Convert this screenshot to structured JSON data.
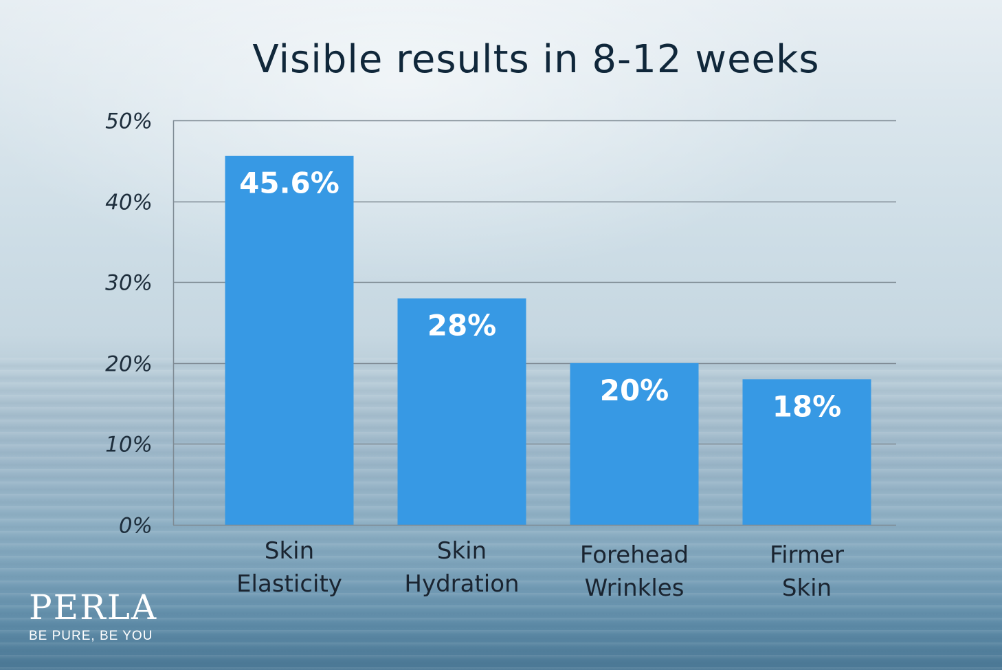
{
  "chart_data": {
    "type": "bar",
    "title": "Visible results in 8-12 weeks",
    "categories": [
      [
        "Skin",
        "Elasticity"
      ],
      [
        "Skin",
        "Hydration"
      ],
      [
        "Forehead",
        "Wrinkles"
      ],
      [
        "Firmer",
        "Skin"
      ]
    ],
    "values": [
      45.6,
      28,
      20,
      18
    ],
    "data_labels": [
      "45.6%",
      "28%",
      "20%",
      "18%"
    ],
    "y_ticks": [
      0,
      10,
      20,
      30,
      40,
      50
    ],
    "y_tick_labels": [
      "0%",
      "10%",
      "20%",
      "30%",
      "40%",
      "50%"
    ],
    "ylim": [
      0,
      50
    ],
    "grid": true,
    "bar_color": "#3799e4",
    "grid_color": "#7e8a93"
  },
  "brand": {
    "name": "PERLA",
    "tagline": "BE PURE, BE YOU"
  }
}
